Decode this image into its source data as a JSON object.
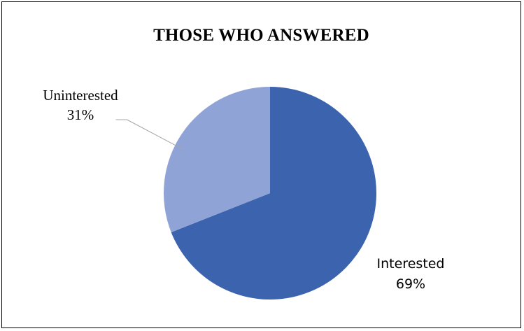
{
  "chart_data": {
    "type": "pie",
    "title": "THOSE WHO ANSWERED",
    "slices": [
      {
        "label": "Interested",
        "percent_label": "69%",
        "value": 69,
        "color": "#3c64ae"
      },
      {
        "label": "Uninterested",
        "percent_label": "31%",
        "value": 31,
        "color": "#8fa3d6"
      }
    ],
    "start_angle_deg": 0,
    "direction": "clockwise",
    "legend": "none",
    "leader_line_color": "#a6a6a6"
  }
}
